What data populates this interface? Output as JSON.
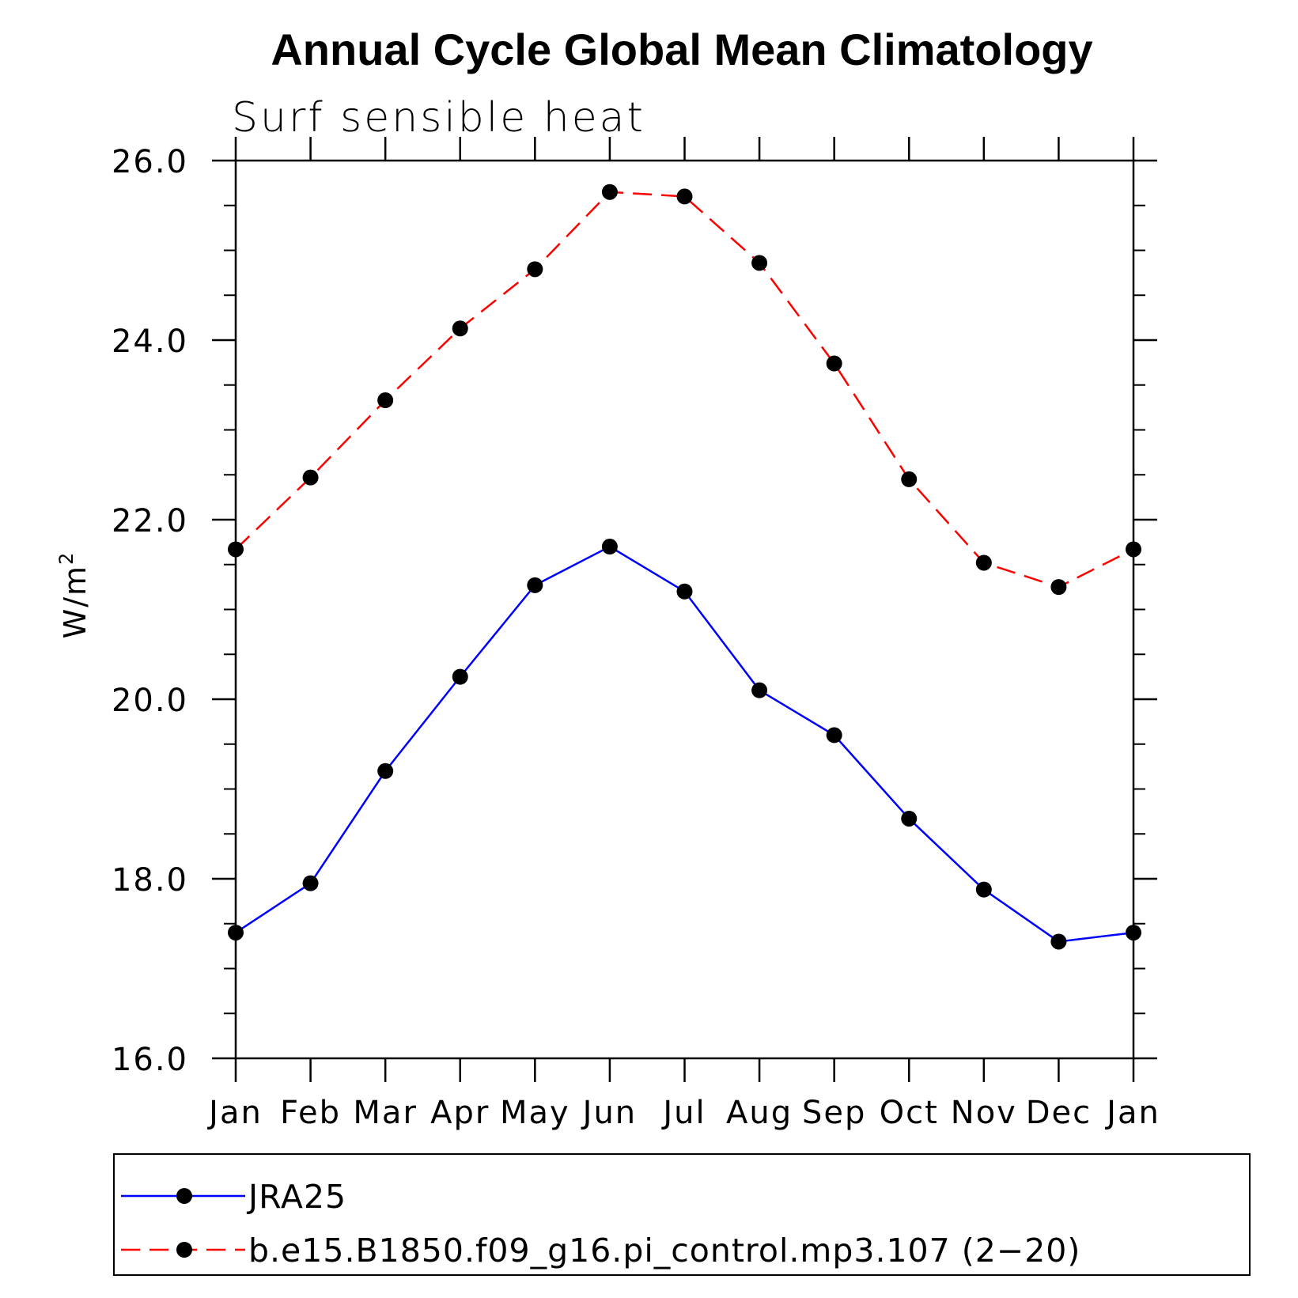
{
  "chart_data": {
    "type": "line",
    "title": "Annual Cycle Global Mean Climatology",
    "subtitle": "Surf sensible heat",
    "xlabel": "",
    "ylabel": "W/m",
    "ylabel_superscript": "2",
    "categories": [
      "Jan",
      "Feb",
      "Mar",
      "Apr",
      "May",
      "Jun",
      "Jul",
      "Aug",
      "Sep",
      "Oct",
      "Nov",
      "Dec",
      "Jan"
    ],
    "ylim": [
      16.0,
      26.0
    ],
    "yticks": [
      "16.0",
      "18.0",
      "20.0",
      "22.0",
      "24.0",
      "26.0"
    ],
    "ytick_values": [
      16,
      18,
      20,
      22,
      24,
      26
    ],
    "yminor_step": 0.5,
    "grid": false,
    "legend_position": "bottom",
    "series": [
      {
        "name": "JRA25",
        "color": "#0000ff",
        "dash": "solid",
        "marker": "filled-circle",
        "marker_color": "#000000",
        "values": [
          17.4,
          17.95,
          19.2,
          20.25,
          21.27,
          21.7,
          21.2,
          20.1,
          19.6,
          18.67,
          17.88,
          17.3,
          17.4
        ]
      },
      {
        "name": "b.e15.B1850.f09_g16.pi_control.mp3.107 (2−20)",
        "color": "#ff0000",
        "dash": "dashed",
        "marker": "filled-circle",
        "marker_color": "#000000",
        "values": [
          21.67,
          22.47,
          23.33,
          24.13,
          24.79,
          25.65,
          25.6,
          24.86,
          23.74,
          22.45,
          21.52,
          21.25,
          21.67
        ]
      }
    ]
  }
}
